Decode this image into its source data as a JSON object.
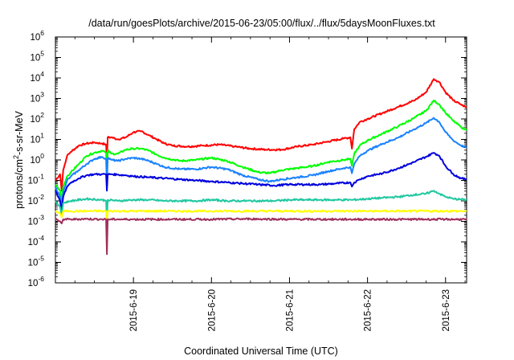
{
  "chart_data": {
    "type": "line",
    "title": "/data/run/goesPlots/archive/2015-06-23/05:00/flux/../flux/5daysMoonFluxes.txt",
    "xlabel": "Coordinated Universal Time (UTC)",
    "ylabel": {
      "main": "protons/cm",
      "sup": "2",
      "rest": "-s-sr-MeV"
    },
    "yscale": "log",
    "ylim": [
      -6,
      6
    ],
    "xlim": [
      0,
      5.27
    ],
    "grid": false,
    "legend": "none",
    "y_ticks": [
      {
        "exp": -6,
        "label_base": "10",
        "label_exp": "-6"
      },
      {
        "exp": -5,
        "label_base": "10",
        "label_exp": "-5"
      },
      {
        "exp": -4,
        "label_base": "10",
        "label_exp": "-4"
      },
      {
        "exp": -3,
        "label_base": "10",
        "label_exp": "-3"
      },
      {
        "exp": -2,
        "label_base": "10",
        "label_exp": "-2"
      },
      {
        "exp": -1,
        "label_base": "10",
        "label_exp": "-1"
      },
      {
        "exp": 0,
        "label_base": "10",
        "label_exp": "0"
      },
      {
        "exp": 1,
        "label_base": "10",
        "label_exp": "1"
      },
      {
        "exp": 2,
        "label_base": "10",
        "label_exp": "2"
      },
      {
        "exp": 3,
        "label_base": "10",
        "label_exp": "3"
      },
      {
        "exp": 4,
        "label_base": "10",
        "label_exp": "4"
      },
      {
        "exp": 5,
        "label_base": "10",
        "label_exp": "5"
      },
      {
        "exp": 6,
        "label_base": "10",
        "label_exp": "6"
      }
    ],
    "x_ticks": [
      {
        "x": 1,
        "label": "2015-6-19"
      },
      {
        "x": 2,
        "label": "2015-6-20"
      },
      {
        "x": 3,
        "label": "2015-6-21"
      },
      {
        "x": 4,
        "label": "2015-6-22"
      },
      {
        "x": 5,
        "label": "2015-6-23"
      }
    ],
    "series": [
      {
        "color": "#ff0000",
        "points": [
          [
            0,
            -1.0
          ],
          [
            0.06,
            -0.7
          ],
          [
            0.08,
            -1.5
          ],
          [
            0.1,
            -0.5
          ],
          [
            0.15,
            0.2
          ],
          [
            0.2,
            0.4
          ],
          [
            0.3,
            0.7
          ],
          [
            0.4,
            0.8
          ],
          [
            0.5,
            0.85
          ],
          [
            0.6,
            0.8
          ],
          [
            0.65,
            0.75
          ],
          [
            0.66,
            0.0
          ],
          [
            0.67,
            1.1
          ],
          [
            0.72,
            1.1
          ],
          [
            0.8,
            1.0
          ],
          [
            0.9,
            1.1
          ],
          [
            1.0,
            1.35
          ],
          [
            1.1,
            1.4
          ],
          [
            1.2,
            1.2
          ],
          [
            1.3,
            1.0
          ],
          [
            1.4,
            0.8
          ],
          [
            1.5,
            0.7
          ],
          [
            1.7,
            0.65
          ],
          [
            1.9,
            0.7
          ],
          [
            2.1,
            0.75
          ],
          [
            2.3,
            0.65
          ],
          [
            2.5,
            0.55
          ],
          [
            2.7,
            0.5
          ],
          [
            2.9,
            0.5
          ],
          [
            3.1,
            0.65
          ],
          [
            3.3,
            0.75
          ],
          [
            3.5,
            0.9
          ],
          [
            3.7,
            1.05
          ],
          [
            3.78,
            1.1
          ],
          [
            3.8,
            0.55
          ],
          [
            3.83,
            1.5
          ],
          [
            3.9,
            1.85
          ],
          [
            4.0,
            2.0
          ],
          [
            4.2,
            2.3
          ],
          [
            4.4,
            2.6
          ],
          [
            4.6,
            2.9
          ],
          [
            4.75,
            3.3
          ],
          [
            4.85,
            3.95
          ],
          [
            4.92,
            3.8
          ],
          [
            5.0,
            3.3
          ],
          [
            5.1,
            2.9
          ],
          [
            5.2,
            2.7
          ],
          [
            5.27,
            2.55
          ]
        ]
      },
      {
        "color": "#00ff00",
        "points": [
          [
            0,
            -1.2
          ],
          [
            0.06,
            -1.5
          ],
          [
            0.08,
            -2.0
          ],
          [
            0.1,
            -1.3
          ],
          [
            0.15,
            -0.8
          ],
          [
            0.2,
            -0.6
          ],
          [
            0.3,
            -0.2
          ],
          [
            0.4,
            0.2
          ],
          [
            0.5,
            0.35
          ],
          [
            0.6,
            0.45
          ],
          [
            0.65,
            0.35
          ],
          [
            0.66,
            -1.0
          ],
          [
            0.67,
            0.45
          ],
          [
            0.72,
            0.3
          ],
          [
            0.8,
            0.3
          ],
          [
            0.9,
            0.5
          ],
          [
            1.0,
            0.55
          ],
          [
            1.1,
            0.55
          ],
          [
            1.2,
            0.45
          ],
          [
            1.3,
            0.25
          ],
          [
            1.4,
            0.1
          ],
          [
            1.6,
            -0.05
          ],
          [
            1.8,
            0.0
          ],
          [
            2.0,
            0.1
          ],
          [
            2.2,
            -0.05
          ],
          [
            2.4,
            -0.35
          ],
          [
            2.6,
            -0.6
          ],
          [
            2.75,
            -0.65
          ],
          [
            2.9,
            -0.5
          ],
          [
            3.1,
            -0.4
          ],
          [
            3.3,
            -0.3
          ],
          [
            3.5,
            -0.1
          ],
          [
            3.7,
            0.0
          ],
          [
            3.78,
            0.05
          ],
          [
            3.8,
            -0.3
          ],
          [
            3.83,
            0.3
          ],
          [
            3.9,
            0.7
          ],
          [
            4.0,
            0.95
          ],
          [
            4.2,
            1.3
          ],
          [
            4.4,
            1.65
          ],
          [
            4.6,
            2.05
          ],
          [
            4.75,
            2.4
          ],
          [
            4.85,
            2.9
          ],
          [
            4.92,
            2.7
          ],
          [
            5.0,
            2.3
          ],
          [
            5.1,
            1.9
          ],
          [
            5.2,
            1.6
          ],
          [
            5.27,
            1.45
          ]
        ]
      },
      {
        "color": "#1a82ff",
        "points": [
          [
            0,
            -1.3
          ],
          [
            0.06,
            -1.8
          ],
          [
            0.08,
            -2.4
          ],
          [
            0.1,
            -1.6
          ],
          [
            0.15,
            -1.0
          ],
          [
            0.2,
            -0.8
          ],
          [
            0.3,
            -0.5
          ],
          [
            0.4,
            -0.2
          ],
          [
            0.5,
            0.05
          ],
          [
            0.6,
            0.15
          ],
          [
            0.65,
            0.05
          ],
          [
            0.66,
            -1.3
          ],
          [
            0.67,
            0.1
          ],
          [
            0.72,
            0.0
          ],
          [
            0.8,
            -0.05
          ],
          [
            0.9,
            0.05
          ],
          [
            1.0,
            0.1
          ],
          [
            1.1,
            0.05
          ],
          [
            1.2,
            -0.05
          ],
          [
            1.3,
            -0.2
          ],
          [
            1.4,
            -0.35
          ],
          [
            1.6,
            -0.45
          ],
          [
            1.8,
            -0.45
          ],
          [
            2.0,
            -0.35
          ],
          [
            2.2,
            -0.45
          ],
          [
            2.4,
            -0.75
          ],
          [
            2.6,
            -0.95
          ],
          [
            2.75,
            -1.05
          ],
          [
            2.9,
            -0.95
          ],
          [
            3.1,
            -0.85
          ],
          [
            3.3,
            -0.75
          ],
          [
            3.5,
            -0.55
          ],
          [
            3.7,
            -0.4
          ],
          [
            3.78,
            -0.35
          ],
          [
            3.8,
            -0.65
          ],
          [
            3.83,
            -0.2
          ],
          [
            3.9,
            0.2
          ],
          [
            4.0,
            0.45
          ],
          [
            4.2,
            0.8
          ],
          [
            4.4,
            1.1
          ],
          [
            4.6,
            1.5
          ],
          [
            4.75,
            1.8
          ],
          [
            4.85,
            2.05
          ],
          [
            4.92,
            1.85
          ],
          [
            5.0,
            1.35
          ],
          [
            5.1,
            0.95
          ],
          [
            5.2,
            0.7
          ],
          [
            5.27,
            0.6
          ]
        ]
      },
      {
        "color": "#0000dd",
        "points": [
          [
            0,
            -1.5
          ],
          [
            0.06,
            -2.0
          ],
          [
            0.08,
            -2.5
          ],
          [
            0.1,
            -1.8
          ],
          [
            0.15,
            -1.3
          ],
          [
            0.2,
            -1.1
          ],
          [
            0.3,
            -0.9
          ],
          [
            0.4,
            -0.75
          ],
          [
            0.5,
            -0.7
          ],
          [
            0.6,
            -0.7
          ],
          [
            0.65,
            -0.7
          ],
          [
            0.66,
            -1.5
          ],
          [
            0.67,
            -0.7
          ],
          [
            0.72,
            -0.7
          ],
          [
            0.8,
            -0.72
          ],
          [
            0.9,
            -0.75
          ],
          [
            1.0,
            -0.8
          ],
          [
            1.2,
            -0.85
          ],
          [
            1.4,
            -0.9
          ],
          [
            1.6,
            -0.95
          ],
          [
            1.8,
            -1.0
          ],
          [
            2.0,
            -1.05
          ],
          [
            2.2,
            -1.1
          ],
          [
            2.4,
            -1.15
          ],
          [
            2.6,
            -1.2
          ],
          [
            2.8,
            -1.25
          ],
          [
            3.0,
            -1.2
          ],
          [
            3.2,
            -1.2
          ],
          [
            3.4,
            -1.2
          ],
          [
            3.6,
            -1.15
          ],
          [
            3.78,
            -1.1
          ],
          [
            3.8,
            -1.3
          ],
          [
            3.83,
            -1.1
          ],
          [
            3.9,
            -0.95
          ],
          [
            4.0,
            -0.8
          ],
          [
            4.2,
            -0.65
          ],
          [
            4.4,
            -0.4
          ],
          [
            4.6,
            -0.1
          ],
          [
            4.75,
            0.15
          ],
          [
            4.85,
            0.35
          ],
          [
            4.92,
            0.2
          ],
          [
            5.0,
            -0.3
          ],
          [
            5.1,
            -0.7
          ],
          [
            5.2,
            -0.9
          ],
          [
            5.27,
            -0.95
          ]
        ]
      },
      {
        "color": "#20c8a0",
        "points": [
          [
            0,
            -2.0
          ],
          [
            0.06,
            -2.3
          ],
          [
            0.08,
            -2.7
          ],
          [
            0.1,
            -2.1
          ],
          [
            0.2,
            -2.0
          ],
          [
            0.4,
            -1.9
          ],
          [
            0.6,
            -1.95
          ],
          [
            0.65,
            -2.0
          ],
          [
            0.66,
            -3.0
          ],
          [
            0.67,
            -1.95
          ],
          [
            0.8,
            -2.0
          ],
          [
            1.0,
            -1.95
          ],
          [
            1.2,
            -1.95
          ],
          [
            1.4,
            -2.0
          ],
          [
            1.6,
            -2.0
          ],
          [
            1.8,
            -2.0
          ],
          [
            2.0,
            -1.95
          ],
          [
            2.2,
            -2.0
          ],
          [
            2.4,
            -2.0
          ],
          [
            2.6,
            -2.0
          ],
          [
            2.8,
            -2.0
          ],
          [
            3.0,
            -1.95
          ],
          [
            3.2,
            -1.95
          ],
          [
            3.4,
            -1.95
          ],
          [
            3.6,
            -1.95
          ],
          [
            3.8,
            -1.95
          ],
          [
            4.0,
            -1.9
          ],
          [
            4.2,
            -1.85
          ],
          [
            4.4,
            -1.8
          ],
          [
            4.6,
            -1.7
          ],
          [
            4.75,
            -1.65
          ],
          [
            4.85,
            -1.5
          ],
          [
            4.92,
            -1.65
          ],
          [
            5.0,
            -1.8
          ],
          [
            5.1,
            -1.9
          ],
          [
            5.27,
            -1.95
          ]
        ]
      },
      {
        "color": "#ffff00",
        "points": [
          [
            0,
            -2.5
          ],
          [
            0.06,
            -2.6
          ],
          [
            0.08,
            -2.8
          ],
          [
            0.1,
            -2.5
          ],
          [
            0.2,
            -2.5
          ],
          [
            0.4,
            -2.5
          ],
          [
            0.6,
            -2.5
          ],
          [
            0.65,
            -2.5
          ],
          [
            0.66,
            -3.2
          ],
          [
            0.67,
            -2.5
          ],
          [
            0.8,
            -2.5
          ],
          [
            1.0,
            -2.5
          ],
          [
            1.5,
            -2.5
          ],
          [
            2.0,
            -2.5
          ],
          [
            2.5,
            -2.5
          ],
          [
            3.0,
            -2.5
          ],
          [
            3.5,
            -2.5
          ],
          [
            4.0,
            -2.5
          ],
          [
            4.5,
            -2.5
          ],
          [
            5.0,
            -2.5
          ],
          [
            5.27,
            -2.5
          ]
        ]
      },
      {
        "color": "#a0305a",
        "points": [
          [
            0,
            -2.9
          ],
          [
            0.06,
            -3.0
          ],
          [
            0.08,
            -3.1
          ],
          [
            0.1,
            -2.9
          ],
          [
            0.2,
            -2.9
          ],
          [
            0.4,
            -2.88
          ],
          [
            0.6,
            -2.9
          ],
          [
            0.65,
            -2.9
          ],
          [
            0.66,
            -4.6
          ],
          [
            0.67,
            -2.9
          ],
          [
            0.8,
            -2.9
          ],
          [
            1.0,
            -2.9
          ],
          [
            1.5,
            -2.9
          ],
          [
            2.0,
            -2.9
          ],
          [
            2.5,
            -2.88
          ],
          [
            3.0,
            -2.9
          ],
          [
            3.5,
            -2.9
          ],
          [
            4.0,
            -2.9
          ],
          [
            4.5,
            -2.9
          ],
          [
            5.0,
            -2.9
          ],
          [
            5.27,
            -2.9
          ]
        ]
      }
    ]
  }
}
